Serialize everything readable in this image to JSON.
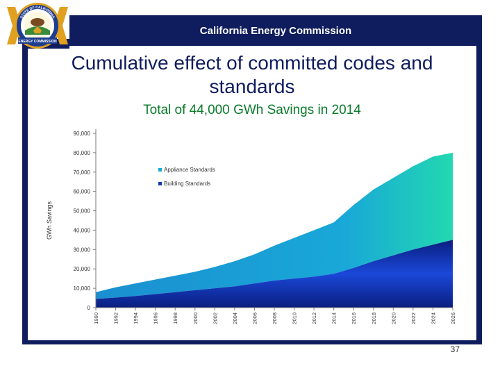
{
  "header": {
    "title": "California Energy Commission"
  },
  "seal": {
    "top_text": "STATE OF CALIFORNIA",
    "bottom_text": "ENERGY COMMISSION",
    "colors": {
      "gold": "#e0a020",
      "navy": "#1d3d8f",
      "green": "#3a8a3a"
    }
  },
  "slide": {
    "title": "Cumulative effect of committed codes and standards",
    "subtitle": "Total of 44,000 GWh Savings in 2014",
    "number": "37"
  },
  "colors": {
    "navy": "#0f1c5e",
    "title_text": "#0f1c5e",
    "subtitle_text": "#0a7a2a",
    "appliance": "#19a8d8",
    "appliance_light": "#22d0b0",
    "building": "#1238c0",
    "building_dark": "#0a1e80"
  },
  "chart_data": {
    "type": "area",
    "stacked": true,
    "ylabel": "GWh Savings",
    "xlabel": "",
    "ylim": [
      0,
      90000
    ],
    "yticks": [
      0,
      10000,
      20000,
      30000,
      40000,
      50000,
      60000,
      70000,
      80000,
      90000
    ],
    "ytick_labels": [
      "0",
      "10,000",
      "20,000",
      "30,000",
      "40,000",
      "50,000",
      "60,000",
      "70,000",
      "80,000",
      "90,000"
    ],
    "x": [
      1990,
      1992,
      1994,
      1996,
      1998,
      2000,
      2002,
      2004,
      2006,
      2008,
      2010,
      2012,
      2014,
      2016,
      2018,
      2020,
      2022,
      2024,
      2026
    ],
    "xtick_labels": [
      "1990",
      "1992",
      "1994",
      "1996",
      "1998",
      "2000",
      "2002",
      "2004",
      "2006",
      "2008",
      "2010",
      "2012",
      "2014",
      "2016",
      "2018",
      "2020",
      "2022",
      "2024",
      "2026"
    ],
    "series": [
      {
        "name": "Building Standards",
        "values": [
          4500,
          5200,
          6000,
          7000,
          8000,
          9000,
          10000,
          11000,
          12500,
          14000,
          15000,
          16000,
          17500,
          20500,
          24000,
          27000,
          30000,
          32500,
          35000
        ]
      },
      {
        "name": "Appliance Standards",
        "values": [
          3500,
          5300,
          6500,
          7500,
          8500,
          9500,
          11000,
          13000,
          15000,
          18000,
          21000,
          24000,
          26500,
          32500,
          37000,
          40000,
          43000,
          45500,
          45000
        ]
      }
    ],
    "legend": {
      "placement": "upper-left",
      "order": [
        "Appliance Standards",
        "Building Standards"
      ]
    },
    "grid": false
  }
}
